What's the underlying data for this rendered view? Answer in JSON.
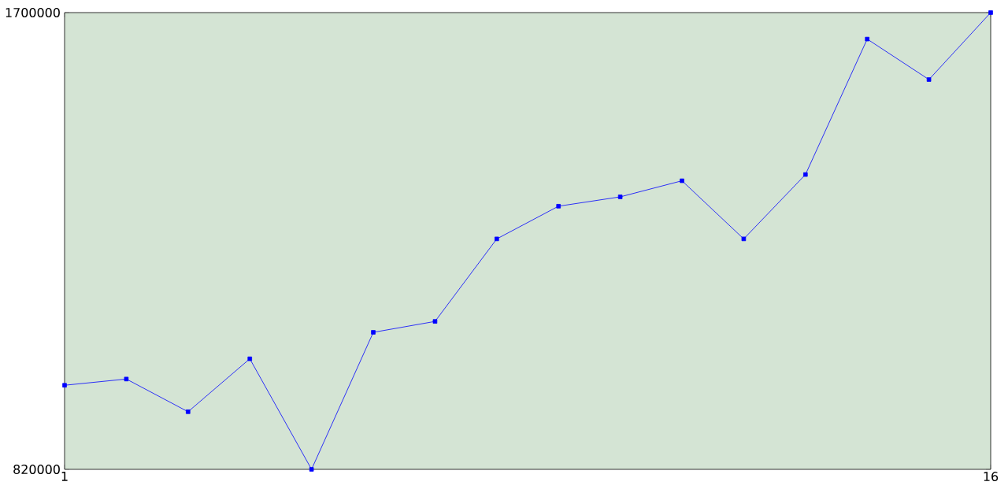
{
  "chart_data": {
    "type": "line",
    "x": [
      1,
      2,
      3,
      4,
      5,
      6,
      7,
      8,
      9,
      10,
      11,
      12,
      13,
      14,
      15,
      16
    ],
    "series": [
      {
        "color": "#0000ff",
        "values": [
          982000,
          994000,
          931000,
          1033000,
          820000,
          1084000,
          1105000,
          1264000,
          1327000,
          1345000,
          1376000,
          1264000,
          1388000,
          1649000,
          1571000,
          1700000
        ]
      }
    ],
    "xlim": [
      1,
      16
    ],
    "ylim": [
      820000,
      1700000
    ],
    "xticks": [
      1,
      16
    ],
    "yticks": [
      820000,
      1700000
    ],
    "marker": "square",
    "line_style": "solid",
    "grid": false
  }
}
